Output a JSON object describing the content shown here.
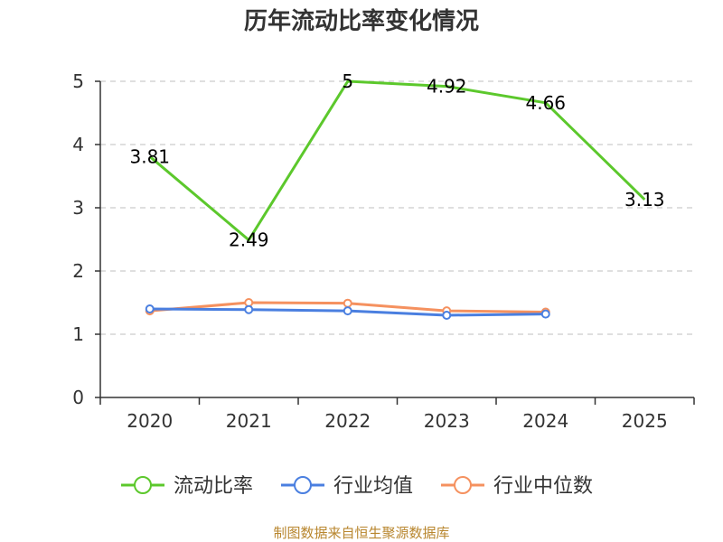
{
  "chart_data": {
    "type": "line",
    "title": "历年流动比率变化情况",
    "categories": [
      "2020",
      "2021",
      "2022",
      "2023",
      "2024",
      "2025"
    ],
    "ylim": [
      0,
      5
    ],
    "yticks": [
      "0",
      "1",
      "2",
      "3",
      "4",
      "5"
    ],
    "grid": true,
    "legend_position": "bottom",
    "series": [
      {
        "name": "流动比率",
        "color": "#5cc82c",
        "values": [
          3.81,
          2.49,
          5,
          4.92,
          4.66,
          3.13
        ],
        "labels": [
          "3.81",
          "2.49",
          "5",
          "4.92",
          "4.66",
          "3.13"
        ],
        "markers": false
      },
      {
        "name": "行业均值",
        "color": "#4a7fe0",
        "values": [
          1.4,
          1.39,
          1.37,
          1.3,
          1.32,
          null
        ],
        "markers": true
      },
      {
        "name": "行业中位数",
        "color": "#f5915f",
        "values": [
          1.37,
          1.5,
          1.49,
          1.37,
          1.35,
          null
        ],
        "markers": true
      }
    ]
  },
  "source": "制图数据来自恒生聚源数据库"
}
